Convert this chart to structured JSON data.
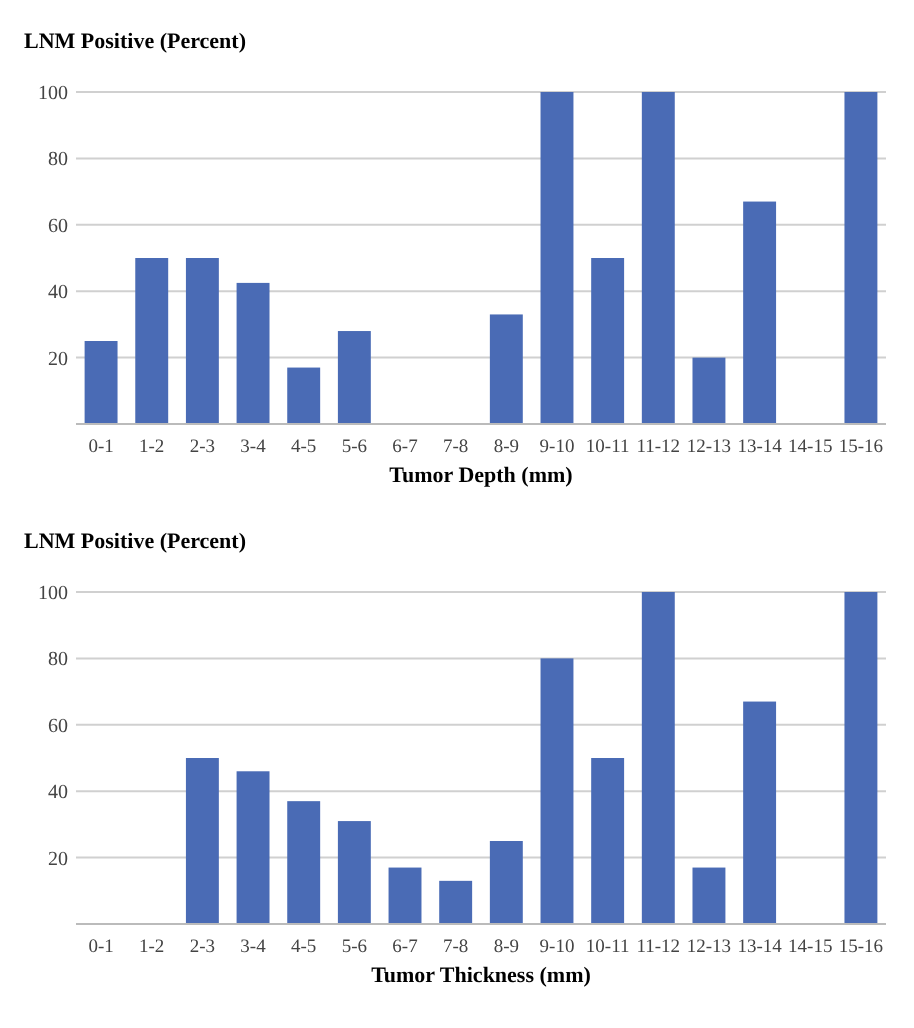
{
  "chart_data": [
    {
      "type": "bar",
      "ylabel": "LNM Positive (Percent)",
      "xlabel": "Tumor Depth (mm)",
      "categories": [
        "0-1",
        "1-2",
        "2-3",
        "3-4",
        "4-5",
        "5-6",
        "6-7",
        "7-8",
        "8-9",
        "9-10",
        "10-11",
        "11-12",
        "12-13",
        "13-14",
        "14-15",
        "15-16"
      ],
      "values": [
        25,
        50,
        50,
        42.5,
        17,
        28,
        0,
        0,
        33,
        100,
        50,
        100,
        20,
        67,
        0,
        100
      ],
      "color": "#4a6bb5",
      "ylim": [
        0,
        100
      ],
      "yticks": [
        20,
        40,
        60,
        80,
        100
      ],
      "grid": "y"
    },
    {
      "type": "bar",
      "ylabel": "LNM Positive (Percent)",
      "xlabel": "Tumor Thickness (mm)",
      "categories": [
        "0-1",
        "1-2",
        "2-3",
        "3-4",
        "4-5",
        "5-6",
        "6-7",
        "7-8",
        "8-9",
        "9-10",
        "10-11",
        "11-12",
        "12-13",
        "13-14",
        "14-15",
        "15-16"
      ],
      "values": [
        0,
        0,
        50,
        46,
        37,
        31,
        17,
        13,
        25,
        80,
        50,
        100,
        17,
        67,
        0,
        100
      ],
      "color": "#4a6bb5",
      "ylim": [
        0,
        100
      ],
      "yticks": [
        20,
        40,
        60,
        80,
        100
      ],
      "grid": "y"
    }
  ]
}
